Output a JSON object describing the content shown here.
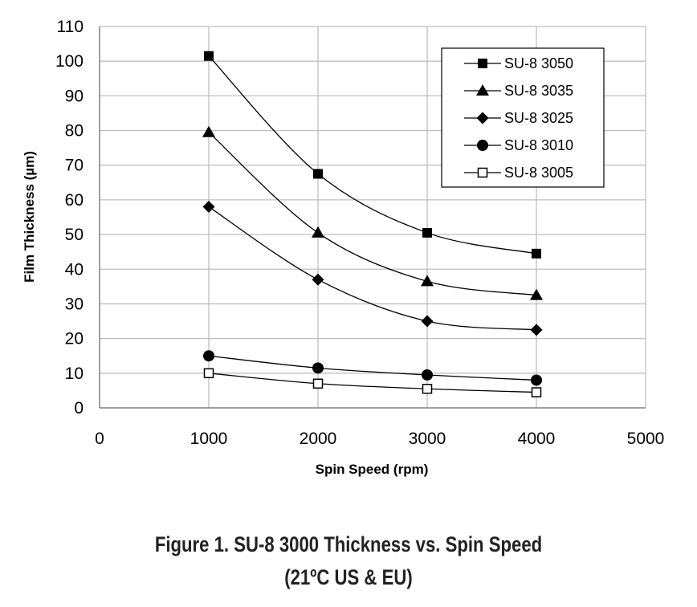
{
  "chart_data": {
    "type": "line",
    "xlabel": "Spin Speed (rpm)",
    "ylabel": "Film Thickness (µm)",
    "xlim": [
      0,
      5000
    ],
    "ylim": [
      0,
      110
    ],
    "x_ticks": [
      0,
      1000,
      2000,
      3000,
      4000,
      5000
    ],
    "y_ticks": [
      0,
      10,
      20,
      30,
      40,
      50,
      60,
      70,
      80,
      90,
      100,
      110
    ],
    "grid": true,
    "legend_position": "top-right",
    "x": [
      1000,
      2000,
      3000,
      4000
    ],
    "series": [
      {
        "name": "SU-8 3050",
        "marker": "square-filled",
        "values": [
          101.5,
          67.5,
          50.5,
          44.5
        ]
      },
      {
        "name": "SU-8 3035",
        "marker": "triangle-filled",
        "values": [
          79.5,
          50.5,
          36.5,
          32.5
        ]
      },
      {
        "name": "SU-8 3025",
        "marker": "diamond-filled",
        "values": [
          58,
          37,
          25,
          22.5
        ]
      },
      {
        "name": "SU-8 3010",
        "marker": "circle-filled",
        "values": [
          15,
          11.5,
          9.5,
          8
        ]
      },
      {
        "name": "SU-8 3005",
        "marker": "square-open",
        "values": [
          10,
          7,
          5.5,
          4.5
        ]
      }
    ]
  },
  "caption": {
    "line1": "Figure 1. SU-8 3000 Thickness vs. Spin Speed",
    "line2": "(21ºC US & EU)"
  },
  "colors": {
    "line": "#000000",
    "grid": "#bfbfbf"
  }
}
